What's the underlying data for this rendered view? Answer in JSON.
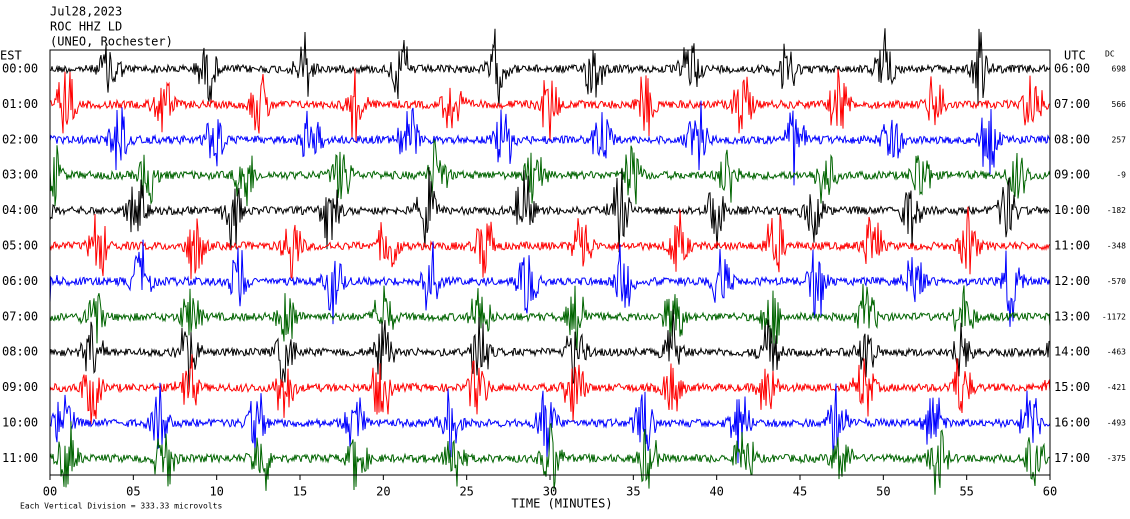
{
  "chart_data": {
    "type": "helicorder",
    "title": "Jul28,2023",
    "station": "ROC HHZ LD",
    "location": "(UNEO, Rochester)",
    "left_axis_title": "EST",
    "right_axis_title": "UTC",
    "dc_title": "DC",
    "x_label": "TIME (MINUTES)",
    "footer": "Each Vertical Division =  333.33 microvolts",
    "xlim": [
      0,
      60
    ],
    "xticks": [
      {
        "value": 0,
        "label": "00"
      },
      {
        "value": 5,
        "label": "05"
      },
      10,
      15,
      20,
      25,
      30,
      35,
      40,
      45,
      50,
      55,
      60
    ],
    "rows": [
      {
        "est": "00:00",
        "utc": "06:00",
        "dc": 698,
        "color": "#000000"
      },
      {
        "est": "01:00",
        "utc": "07:00",
        "dc": 566,
        "color": "#ff0000"
      },
      {
        "est": "02:00",
        "utc": "08:00",
        "dc": 257,
        "color": "#0000ff"
      },
      {
        "est": "03:00",
        "utc": "09:00",
        "dc": -9,
        "color": "#006400"
      },
      {
        "est": "04:00",
        "utc": "10:00",
        "dc": -182,
        "color": "#000000"
      },
      {
        "est": "05:00",
        "utc": "11:00",
        "dc": -348,
        "color": "#ff0000"
      },
      {
        "est": "06:00",
        "utc": "12:00",
        "dc": -570,
        "color": "#0000ff"
      },
      {
        "est": "07:00",
        "utc": "13:00",
        "dc": -1172,
        "color": "#006400"
      },
      {
        "est": "08:00",
        "utc": "14:00",
        "dc": -463,
        "color": "#000000"
      },
      {
        "est": "09:00",
        "utc": "15:00",
        "dc": -421,
        "color": "#ff0000"
      },
      {
        "est": "10:00",
        "utc": "16:00",
        "dc": -493,
        "color": "#0000ff"
      },
      {
        "est": "11:00",
        "utc": "17:00",
        "dc": -375,
        "color": "#006400"
      }
    ]
  }
}
